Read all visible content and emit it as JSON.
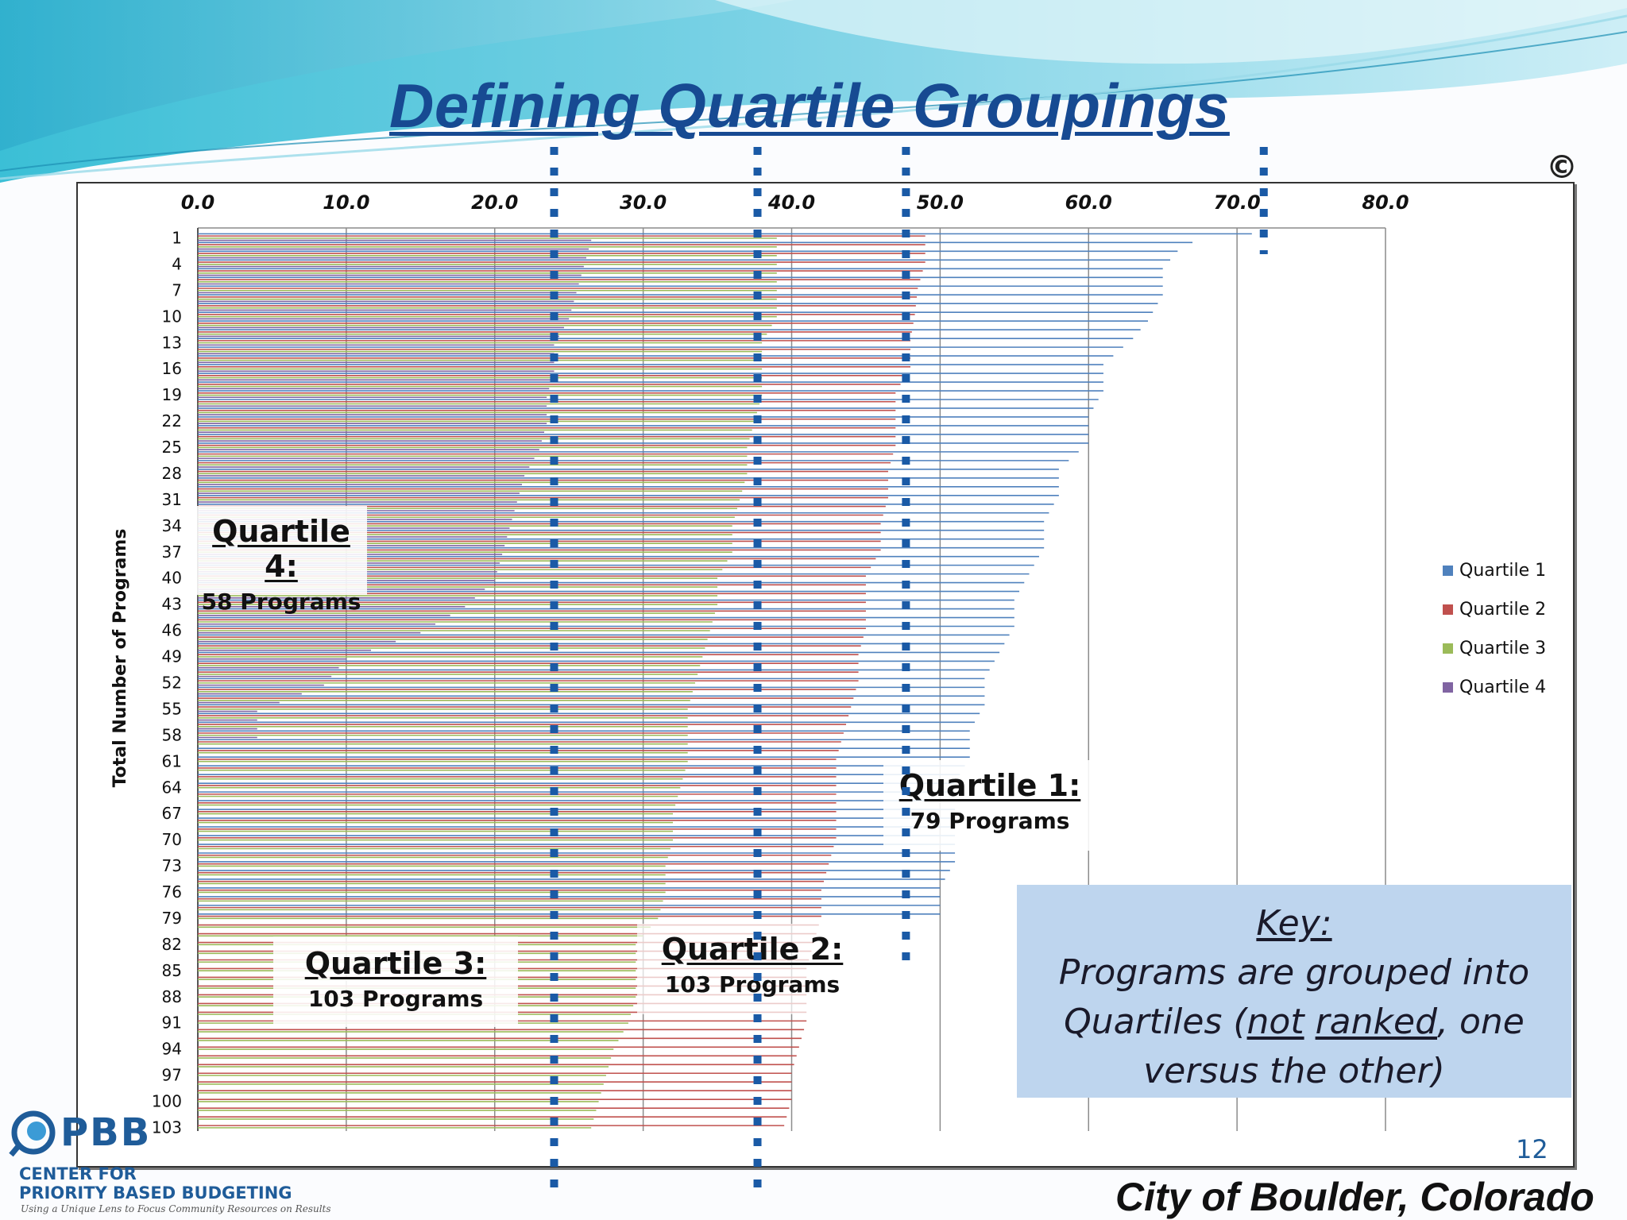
{
  "slide": {
    "title": "Defining Quartile Groupings",
    "copyright_symbol": "©",
    "page_number": "12",
    "footer_location": "City of Boulder, Colorado",
    "logo": {
      "abbr": "PBB",
      "line1": "CENTER FOR",
      "line2": "PRIORITY BASED BUDGETING",
      "tagline": "Using a Unique Lens to Focus Community Resources on Results"
    }
  },
  "annotations": {
    "q4": {
      "heading": "Quartile 4:",
      "count": "58 Programs"
    },
    "q3": {
      "heading": "Quartile 3:",
      "count": "103 Programs"
    },
    "q2": {
      "heading": "Quartile 2:",
      "count": "103 Programs"
    },
    "q1": {
      "heading": "Quartile 1:",
      "count": "79 Programs"
    },
    "key": {
      "heading": "Key:",
      "line1": "Programs are grouped into",
      "line2_a": "Quartiles (",
      "line2_b": "not",
      "line2_c": " ",
      "line2_d": "ranked",
      "line2_e": ", one",
      "line3": "versus the other)"
    }
  },
  "chart_data": {
    "type": "bar",
    "orientation": "horizontal",
    "title": "",
    "xlabel": "",
    "ylabel": "Total  Number of Programs",
    "xlim": [
      0,
      80
    ],
    "x_ticks": [
      "0.0",
      "10.0",
      "20.0",
      "30.0",
      "40.0",
      "50.0",
      "60.0",
      "70.0",
      "80.0"
    ],
    "y_tick_labels": [
      "1",
      "4",
      "7",
      "10",
      "13",
      "16",
      "19",
      "22",
      "25",
      "28",
      "31",
      "34",
      "37",
      "40",
      "43",
      "46",
      "49",
      "52",
      "55",
      "58",
      "61",
      "64",
      "67",
      "70",
      "73",
      "76",
      "79",
      "82",
      "85",
      "88",
      "91",
      "94",
      "97",
      "100",
      "103"
    ],
    "programs_per_series": 103,
    "series": [
      {
        "name": "Quartile 1",
        "color": "#4f81bd",
        "count": 79,
        "anchors": [
          [
            1,
            71
          ],
          [
            2,
            67
          ],
          [
            3,
            66
          ],
          [
            5,
            65
          ],
          [
            8,
            65
          ],
          [
            11,
            64
          ],
          [
            13,
            63
          ],
          [
            16,
            61
          ],
          [
            19,
            61
          ],
          [
            22,
            60
          ],
          [
            25,
            60
          ],
          [
            28,
            58
          ],
          [
            31,
            58
          ],
          [
            34,
            57
          ],
          [
            37,
            57
          ],
          [
            40,
            56
          ],
          [
            43,
            55
          ],
          [
            46,
            55
          ],
          [
            49,
            54
          ],
          [
            52,
            53
          ],
          [
            55,
            53
          ],
          [
            58,
            52
          ],
          [
            61,
            52
          ],
          [
            64,
            51
          ],
          [
            67,
            51
          ],
          [
            70,
            51
          ],
          [
            73,
            51
          ],
          [
            76,
            50
          ],
          [
            79,
            50
          ]
        ]
      },
      {
        "name": "Quartile 2",
        "color": "#c0504d",
        "count": 103,
        "anchors": [
          [
            1,
            49
          ],
          [
            4,
            49
          ],
          [
            7,
            48.5
          ],
          [
            10,
            48.3
          ],
          [
            13,
            48
          ],
          [
            16,
            48
          ],
          [
            19,
            47
          ],
          [
            22,
            47
          ],
          [
            25,
            47
          ],
          [
            28,
            46.5
          ],
          [
            31,
            46.5
          ],
          [
            34,
            46
          ],
          [
            37,
            46
          ],
          [
            40,
            45
          ],
          [
            43,
            45
          ],
          [
            46,
            45
          ],
          [
            49,
            44.5
          ],
          [
            52,
            44.5
          ],
          [
            55,
            44
          ],
          [
            58,
            43.5
          ],
          [
            61,
            43
          ],
          [
            64,
            43
          ],
          [
            67,
            43
          ],
          [
            70,
            43
          ],
          [
            73,
            42.5
          ],
          [
            76,
            42
          ],
          [
            79,
            42
          ],
          [
            82,
            41.5
          ],
          [
            85,
            41
          ],
          [
            88,
            41
          ],
          [
            91,
            41
          ],
          [
            94,
            40.5
          ],
          [
            97,
            40
          ],
          [
            100,
            40
          ],
          [
            103,
            39.5
          ]
        ]
      },
      {
        "name": "Quartile 3",
        "color": "#9bbb59",
        "count": 103,
        "anchors": [
          [
            1,
            39
          ],
          [
            4,
            39
          ],
          [
            7,
            39
          ],
          [
            10,
            39
          ],
          [
            13,
            38
          ],
          [
            16,
            38
          ],
          [
            19,
            38
          ],
          [
            22,
            37.5
          ],
          [
            25,
            37
          ],
          [
            28,
            37
          ],
          [
            31,
            36.5
          ],
          [
            34,
            36
          ],
          [
            37,
            36
          ],
          [
            40,
            35
          ],
          [
            43,
            35
          ],
          [
            46,
            34.5
          ],
          [
            49,
            34
          ],
          [
            52,
            33.5
          ],
          [
            55,
            33
          ],
          [
            58,
            33
          ],
          [
            61,
            33
          ],
          [
            64,
            32.5
          ],
          [
            67,
            32
          ],
          [
            70,
            32
          ],
          [
            73,
            31.5
          ],
          [
            76,
            31.5
          ],
          [
            79,
            31
          ],
          [
            82,
            29.5
          ],
          [
            85,
            29.5
          ],
          [
            88,
            29.5
          ],
          [
            91,
            29
          ],
          [
            94,
            28
          ],
          [
            97,
            27.5
          ],
          [
            100,
            27
          ],
          [
            103,
            26.5
          ]
        ]
      },
      {
        "name": "Quartile 4",
        "color": "#8064a2",
        "count": 58,
        "anchors": [
          [
            1,
            26.5
          ],
          [
            4,
            26
          ],
          [
            7,
            25.5
          ],
          [
            10,
            25
          ],
          [
            13,
            24
          ],
          [
            16,
            24
          ],
          [
            19,
            23.5
          ],
          [
            22,
            23.5
          ],
          [
            25,
            23
          ],
          [
            28,
            22
          ],
          [
            31,
            21.5
          ],
          [
            34,
            21
          ],
          [
            37,
            20.5
          ],
          [
            40,
            20
          ],
          [
            43,
            18
          ],
          [
            46,
            15
          ],
          [
            49,
            10
          ],
          [
            52,
            8.5
          ],
          [
            55,
            4
          ],
          [
            58,
            4
          ]
        ]
      }
    ],
    "quartile_cutoffs": [
      24,
      37.7,
      47.7,
      71.8
    ],
    "legend_position": "right",
    "grid": true
  }
}
